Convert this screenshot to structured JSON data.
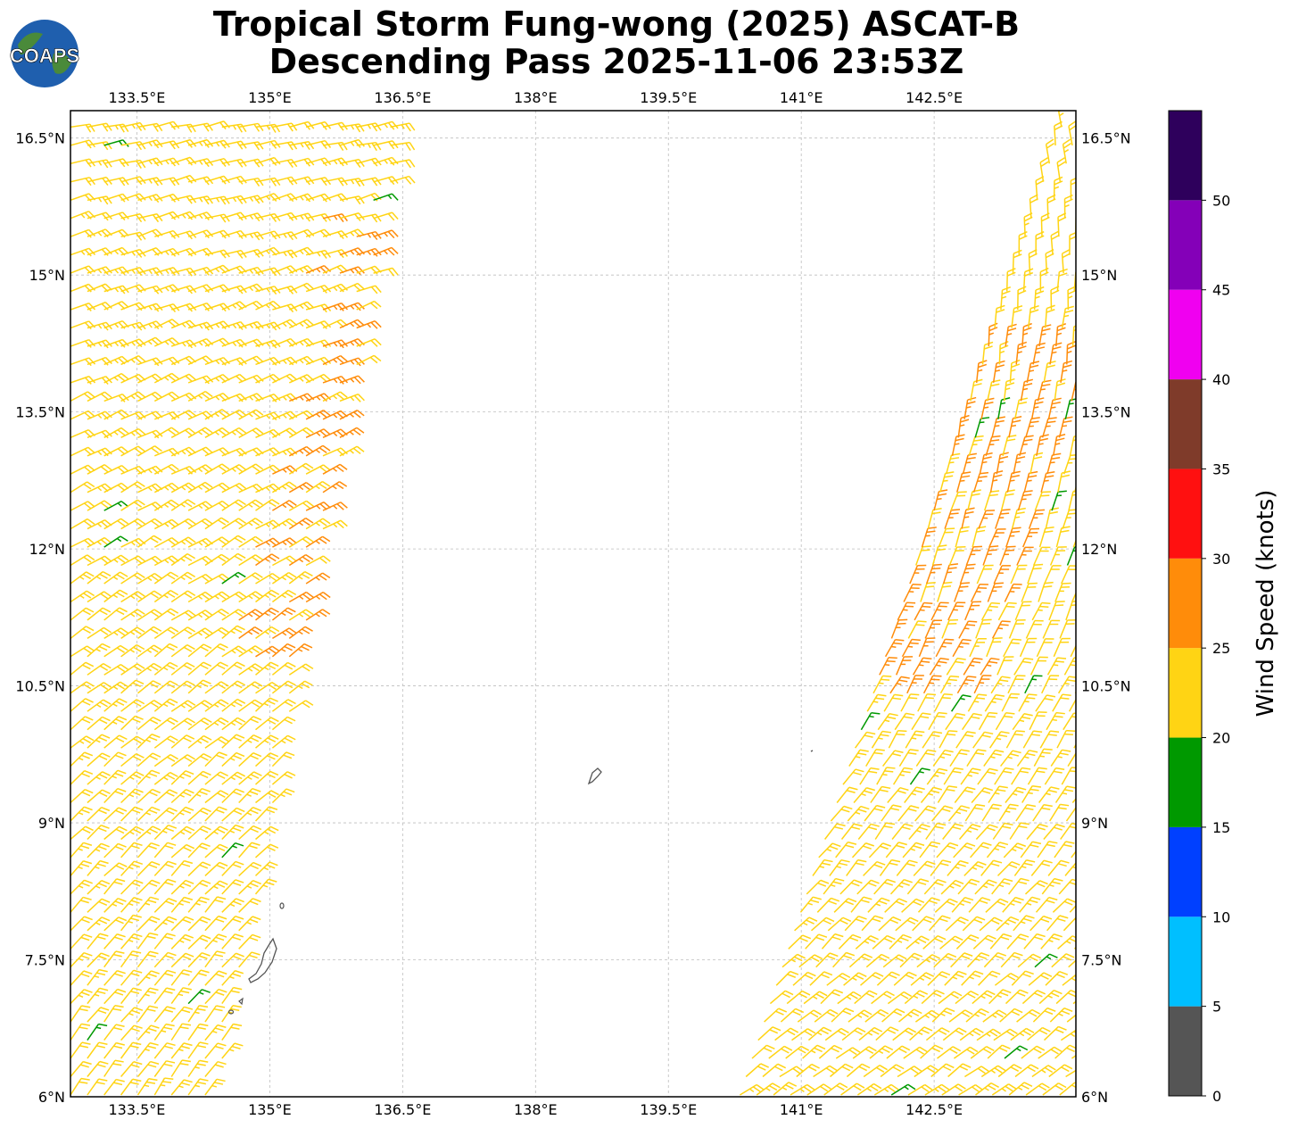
{
  "title": {
    "line1": "Tropical Storm Fung-wong (2025) ASCAT-B",
    "line2": "Descending Pass 2025-11-06 23:53Z"
  },
  "logo": {
    "text": "COAPS",
    "icon": "globe-logo-icon"
  },
  "map": {
    "lon_range": [
      132.75,
      144.1
    ],
    "lat_range": [
      6.0,
      16.8
    ],
    "lon_ticks": [
      "133.5°E",
      "135°E",
      "136.5°E",
      "138°E",
      "139.5°E",
      "141°E",
      "142.5°E"
    ],
    "lon_tick_values": [
      133.5,
      135,
      136.5,
      138,
      139.5,
      141,
      142.5
    ],
    "lat_ticks": [
      "6°N",
      "7.5°N",
      "9°N",
      "10.5°N",
      "12°N",
      "13.5°N",
      "15°N",
      "16.5°N"
    ],
    "lat_tick_values": [
      6,
      7.5,
      9,
      10.5,
      12,
      13.5,
      15,
      16.5
    ],
    "grid": true,
    "land_color": "#555555"
  },
  "colorbar": {
    "label": "Wind Speed (knots)",
    "ticks": [
      "0",
      "5",
      "10",
      "15",
      "20",
      "25",
      "30",
      "35",
      "40",
      "45",
      "50"
    ],
    "bins": [
      {
        "min": 0,
        "max": 5,
        "color": "#555555"
      },
      {
        "min": 5,
        "max": 10,
        "color": "#00bfff"
      },
      {
        "min": 10,
        "max": 15,
        "color": "#0040ff"
      },
      {
        "min": 15,
        "max": 20,
        "color": "#009900"
      },
      {
        "min": 20,
        "max": 25,
        "color": "#ffd414"
      },
      {
        "min": 25,
        "max": 30,
        "color": "#ff8c0a"
      },
      {
        "min": 30,
        "max": 35,
        "color": "#ff1010"
      },
      {
        "min": 35,
        "max": 40,
        "color": "#7f3b2a"
      },
      {
        "min": 40,
        "max": 45,
        "color": "#f000f0"
      },
      {
        "min": 45,
        "max": 50,
        "color": "#8400b8"
      },
      {
        "min": 50,
        "max": 55,
        "color": "#2e005c"
      }
    ]
  },
  "chart_data": {
    "type": "scatter",
    "plot": "wind barbs (ASCAT-B swath)",
    "swaths": [
      {
        "lon_left_at_lat6": 132.75,
        "lon_right_at_lat6": 134.4,
        "lon_left_at_lat16_8": 132.75,
        "lon_right_at_lat16_8": 136.55
      },
      {
        "lon_left_at_lat6": 140.3,
        "lon_right_at_lat6": 144.1,
        "lon_left_at_lat16_8": 144.0,
        "lon_right_at_lat16_8": 144.1
      }
    ],
    "typical_speed_knots": 22,
    "strong_band_speed_knots": 27,
    "weak_patch_speed_knots": 17
  }
}
